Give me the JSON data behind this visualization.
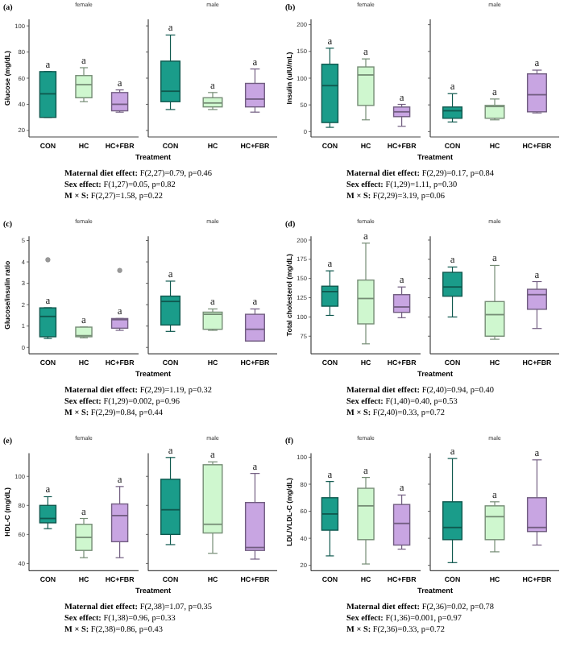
{
  "chart_data": [
    {
      "type": "box",
      "title": "(a)",
      "subtitle": "female",
      "ylabel": "Glucose (mg/dL)",
      "xlabel": "Treatment",
      "categories": [
        "CON",
        "HC",
        "HC+FBR"
      ],
      "colors": [
        "#1a9c8a",
        "#cff7cf",
        "#c8a5e2"
      ],
      "ylim": [
        15,
        105
      ],
      "yticks": [
        20,
        40,
        60,
        80,
        100
      ],
      "value_labels": [
        "a",
        "a",
        "a"
      ],
      "boxes": [
        {
          "low": 30,
          "q1": 30,
          "median": 48,
          "q3": 65,
          "high": 65
        },
        {
          "low": 42,
          "q1": 45,
          "median": 55,
          "q3": 62,
          "high": 68
        },
        {
          "low": 34,
          "q1": 35,
          "median": 40,
          "q3": 49,
          "high": 51
        }
      ],
      "annotations": [
        "Maternal diet effect: F(2,27)=0.79, p=0.46",
        "Sex effect: F(1,27)=0.05, p=0.82",
        "M × S: F(2,27)=1.58, p=0.22"
      ]
    },
    {
      "type": "box",
      "subtitle": "male",
      "categories": [
        "CON",
        "HC",
        "HC+FBR"
      ],
      "colors": [
        "#1a9c8a",
        "#cff7cf",
        "#c8a5e2"
      ],
      "ylim": [
        15,
        105
      ],
      "yticks": [
        20,
        40,
        60,
        80,
        100
      ],
      "tick_labels": "x",
      "value_labels": [
        "a",
        "a",
        "a"
      ],
      "boxes": [
        {
          "low": 36,
          "q1": 42,
          "median": 50,
          "q3": 73,
          "high": 93
        },
        {
          "low": 36,
          "q1": 38,
          "median": 41,
          "q3": 45,
          "high": 49
        },
        {
          "low": 34,
          "q1": 38,
          "median": 44,
          "q3": 56,
          "high": 67
        }
      ]
    },
    {
      "type": "box",
      "title": "(b)",
      "subtitle": "female",
      "ylabel": "Insulin (uIU/mL)",
      "xlabel": "Treatment",
      "categories": [
        "CON",
        "HC",
        "HC+FBR"
      ],
      "colors": [
        "#1a9c8a",
        "#cff7cf",
        "#c8a5e2"
      ],
      "ylim": [
        -10,
        210
      ],
      "yticks": [
        0,
        50,
        100,
        150,
        200
      ],
      "value_labels": [
        "a",
        "a",
        "a"
      ],
      "boxes": [
        {
          "low": 8,
          "q1": 17,
          "median": 86,
          "q3": 126,
          "high": 156
        },
        {
          "low": 22,
          "q1": 49,
          "median": 106,
          "q3": 121,
          "high": 136
        },
        {
          "low": 10,
          "q1": 28,
          "median": 37,
          "q3": 46,
          "high": 51
        }
      ],
      "annotations": [
        "Maternal diet effect: F(2,29)=0.17, p=0.84",
        "Sex effect: F(1,29)=1.11, p=0.30",
        "M × S: F(2,29)=3.19, p=0.06"
      ]
    },
    {
      "type": "box",
      "subtitle": "male",
      "categories": [
        "CON",
        "HC",
        "HC+FBR"
      ],
      "colors": [
        "#1a9c8a",
        "#cff7cf",
        "#c8a5e2"
      ],
      "ylim": [
        -10,
        210
      ],
      "yticks": [
        0,
        50,
        100,
        150,
        200
      ],
      "tick_labels": "x",
      "value_labels": [
        "a",
        "a",
        "a"
      ],
      "boxes": [
        {
          "low": 18,
          "q1": 25,
          "median": 39,
          "q3": 46,
          "high": 71
        },
        {
          "low": 22,
          "q1": 25,
          "median": 47,
          "q3": 49,
          "high": 61
        },
        {
          "low": 35,
          "q1": 37,
          "median": 69,
          "q3": 108,
          "high": 115
        }
      ]
    },
    {
      "type": "box",
      "title": "(c)",
      "subtitle": "female",
      "ylabel": "Glucose/insulin ratio",
      "xlabel": "Treatment",
      "categories": [
        "CON",
        "HC",
        "HC+FBR"
      ],
      "colors": [
        "#1a9c8a",
        "#cff7cf",
        "#c8a5e2"
      ],
      "ylim": [
        -0.3,
        5.2
      ],
      "yticks": [
        0,
        1,
        2,
        3,
        4,
        5
      ],
      "value_labels": [
        "a",
        "a",
        "a"
      ],
      "boxes": [
        {
          "low": 0.42,
          "q1": 0.5,
          "median": 1.45,
          "q3": 1.85,
          "high": 1.85,
          "outliers": [
            4.1
          ]
        },
        {
          "low": 0.45,
          "q1": 0.5,
          "median": 0.55,
          "q3": 0.95,
          "high": 0.95
        },
        {
          "low": 0.8,
          "q1": 0.9,
          "median": 1.3,
          "q3": 1.35,
          "high": 1.35,
          "outliers": [
            3.6
          ]
        }
      ],
      "annotations": [
        "Maternal diet effect: F(2,29)=1.19, p=0.32",
        "Sex effect: F(1,29)=0.002, p=0.96",
        "M × S: F(2,29)=0.84, p=0.44"
      ]
    },
    {
      "type": "box",
      "subtitle": "male",
      "categories": [
        "CON",
        "HC",
        "HC+FBR"
      ],
      "colors": [
        "#1a9c8a",
        "#cff7cf",
        "#c8a5e2"
      ],
      "ylim": [
        -0.3,
        5.2
      ],
      "yticks": [
        0,
        1,
        2,
        3,
        4,
        5
      ],
      "tick_labels": "x",
      "value_labels": [
        "a",
        "a",
        "a"
      ],
      "boxes": [
        {
          "low": 0.75,
          "q1": 1.05,
          "median": 2.15,
          "q3": 2.4,
          "high": 3.1
        },
        {
          "low": 0.8,
          "q1": 0.85,
          "median": 1.55,
          "q3": 1.65,
          "high": 1.8
        },
        {
          "low": 0.3,
          "q1": 0.3,
          "median": 0.85,
          "q3": 1.55,
          "high": 1.8
        }
      ]
    },
    {
      "type": "box",
      "title": "(d)",
      "subtitle": "female",
      "ylabel": "Total cholesterol (mg/dL)",
      "xlabel": "Treatment",
      "categories": [
        "CON",
        "HC",
        "HC+FBR"
      ],
      "colors": [
        "#1a9c8a",
        "#cff7cf",
        "#c8a5e2"
      ],
      "ylim": [
        52,
        205
      ],
      "yticks": [
        75,
        100,
        125,
        150,
        175,
        200
      ],
      "value_labels": [
        "a",
        "a",
        "a"
      ],
      "boxes": [
        {
          "low": 102,
          "q1": 114,
          "median": 133,
          "q3": 140,
          "high": 160
        },
        {
          "low": 65,
          "q1": 91,
          "median": 124,
          "q3": 148,
          "high": 196
        },
        {
          "low": 99,
          "q1": 106,
          "median": 113,
          "q3": 129,
          "high": 139
        }
      ],
      "annotations": [
        "Maternal diet effect: F(2,40)=0.94, p=0.40",
        "Sex effect: F(1,40)=0.40, p=0.53",
        "M × S: F(2,40)=0.33, p=0.72"
      ]
    },
    {
      "type": "box",
      "subtitle": "male",
      "categories": [
        "CON",
        "HC",
        "HC+FBR"
      ],
      "colors": [
        "#1a9c8a",
        "#cff7cf",
        "#c8a5e2"
      ],
      "ylim": [
        52,
        205
      ],
      "yticks": [
        75,
        100,
        125,
        150,
        175,
        200
      ],
      "tick_labels": "x",
      "value_labels": [
        "a",
        "a",
        "a"
      ],
      "boxes": [
        {
          "low": 100,
          "q1": 127,
          "median": 139,
          "q3": 158,
          "high": 165
        },
        {
          "low": 71,
          "q1": 75,
          "median": 103,
          "q3": 120,
          "high": 167
        },
        {
          "low": 85,
          "q1": 110,
          "median": 129,
          "q3": 136,
          "high": 146
        }
      ]
    },
    {
      "type": "box",
      "title": "(e)",
      "subtitle": "female",
      "ylabel": "HDL-C (mg/dL)",
      "xlabel": "Treatment",
      "categories": [
        "CON",
        "HC",
        "HC+FBR"
      ],
      "colors": [
        "#1a9c8a",
        "#cff7cf",
        "#c8a5e2"
      ],
      "ylim": [
        35,
        116
      ],
      "yticks": [
        40,
        60,
        80,
        100
      ],
      "value_labels": [
        "a",
        "a",
        "a"
      ],
      "boxes": [
        {
          "low": 64,
          "q1": 68,
          "median": 71,
          "q3": 80,
          "high": 86
        },
        {
          "low": 44,
          "q1": 49,
          "median": 58,
          "q3": 67,
          "high": 71
        },
        {
          "low": 44,
          "q1": 55,
          "median": 73,
          "q3": 81,
          "high": 93
        }
      ],
      "annotations": [
        "Maternal diet effect: F(2,38)=1.07, p=0.35",
        "Sex effect: F(1,38)=0.96, p=0.33",
        "M × S: F(2,38)=0.86, p=0.43"
      ]
    },
    {
      "type": "box",
      "subtitle": "male",
      "categories": [
        "CON",
        "HC",
        "HC+FBR"
      ],
      "colors": [
        "#1a9c8a",
        "#cff7cf",
        "#c8a5e2"
      ],
      "ylim": [
        35,
        116
      ],
      "yticks": [
        40,
        60,
        80,
        100
      ],
      "tick_labels": "x",
      "value_labels": [
        "a",
        "a",
        "a"
      ],
      "boxes": [
        {
          "low": 53,
          "q1": 60,
          "median": 77,
          "q3": 98,
          "high": 113
        },
        {
          "low": 47,
          "q1": 61,
          "median": 67,
          "q3": 108,
          "high": 110
        },
        {
          "low": 43,
          "q1": 49,
          "median": 51,
          "q3": 82,
          "high": 102
        }
      ]
    },
    {
      "type": "box",
      "title": "(f)",
      "subtitle": "female",
      "ylabel": "LDL/VLDL-C (mg/dL)",
      "xlabel": "Treatment",
      "categories": [
        "CON",
        "HC",
        "HC+FBR"
      ],
      "colors": [
        "#1a9c8a",
        "#cff7cf",
        "#c8a5e2"
      ],
      "ylim": [
        16,
        103
      ],
      "yticks": [
        20,
        40,
        60,
        80,
        100
      ],
      "value_labels": [
        "a",
        "a",
        "a"
      ],
      "boxes": [
        {
          "low": 27,
          "q1": 46,
          "median": 58,
          "q3": 70,
          "high": 82
        },
        {
          "low": 21,
          "q1": 39,
          "median": 64,
          "q3": 77,
          "high": 85
        },
        {
          "low": 32,
          "q1": 35,
          "median": 51,
          "q3": 65,
          "high": 72
        }
      ],
      "annotations": [
        "Maternal diet effect: F(2,36)=0.02, p=0.78",
        "Sex effect: F(1,36)=0.001, p=0.97",
        "M × S: F(2,36)=0.33, p=0.72"
      ]
    },
    {
      "type": "box",
      "subtitle": "male",
      "categories": [
        "CON",
        "HC",
        "HC+FBR"
      ],
      "colors": [
        "#1a9c8a",
        "#cff7cf",
        "#c8a5e2"
      ],
      "ylim": [
        16,
        103
      ],
      "yticks": [
        20,
        40,
        60,
        80,
        100
      ],
      "tick_labels": "x",
      "value_labels": [
        "a",
        "a",
        "a"
      ],
      "boxes": [
        {
          "low": 22,
          "q1": 39,
          "median": 48,
          "q3": 67,
          "high": 99
        },
        {
          "low": 30,
          "q1": 39,
          "median": 56,
          "q3": 64,
          "high": 67
        },
        {
          "low": 35,
          "q1": 45,
          "median": 48,
          "q3": 70,
          "high": 98
        }
      ]
    }
  ]
}
